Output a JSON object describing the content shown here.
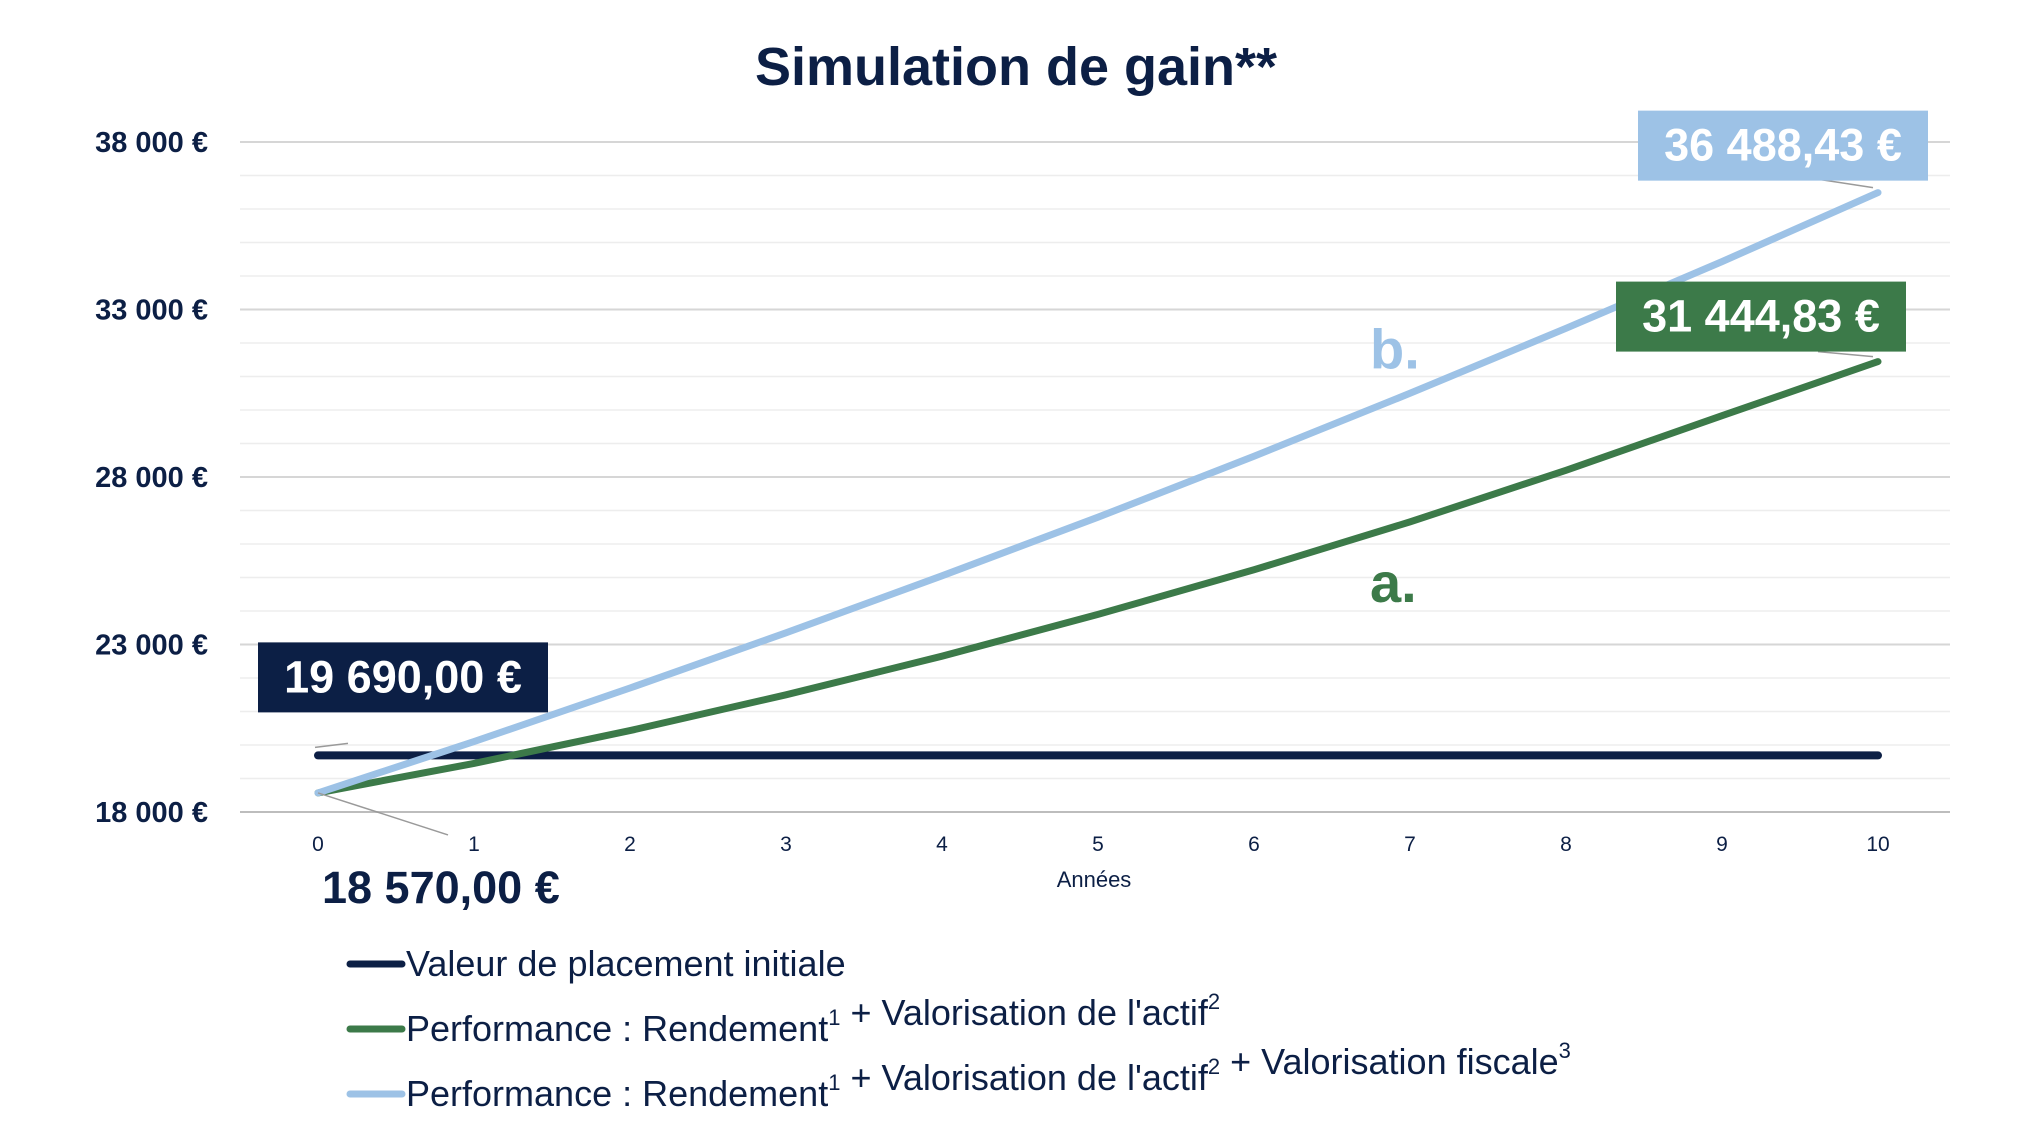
{
  "chart_data": {
    "type": "line",
    "title": "Simulation de gain**",
    "xlabel": "Années",
    "ylabel": "",
    "x": [
      0,
      1,
      2,
      3,
      4,
      5,
      6,
      7,
      8,
      9,
      10
    ],
    "ylim": [
      18000,
      38000
    ],
    "yticks": [
      18000,
      23000,
      28000,
      33000,
      38000
    ],
    "ytick_labels": [
      "18 000 €",
      "23 000 €",
      "28 000 €",
      "33 000 €",
      "38 000 €"
    ],
    "minor_grid_step": 1000,
    "grid": true,
    "legend_position": "bottom-left",
    "series": [
      {
        "name": "Valeur de placement initiale",
        "name_sup": [],
        "color": "#0c1f45",
        "values": [
          19690,
          19690,
          19690,
          19690,
          19690,
          19690,
          19690,
          19690,
          19690,
          19690,
          19690
        ]
      },
      {
        "name": "Performance : Rendement + Valorisation de l'actif",
        "name_sup": [
          "1",
          "2"
        ],
        "letter": "a.",
        "color": "#3c7a49",
        "values": [
          18570,
          19450,
          20430,
          21500,
          22650,
          23900,
          25230,
          26660,
          28200,
          29830,
          31444.83
        ]
      },
      {
        "name": "Performance : Rendement + Valorisation de l'actif + Valorisation fiscale",
        "name_sup": [
          "1",
          "2",
          "3"
        ],
        "letter": "b.",
        "color": "#9dc2e6",
        "values": [
          18570,
          20100,
          21700,
          23350,
          25050,
          26800,
          28620,
          30500,
          32440,
          34430,
          36488.43
        ]
      }
    ],
    "annotations": [
      {
        "text": "19 690,00 €",
        "series": 0,
        "x": 0,
        "style": "box",
        "bg": "#0c1f45"
      },
      {
        "text": "18 570,00 €",
        "series": 1,
        "x": 0,
        "style": "plain"
      },
      {
        "text": "31 444,83 €",
        "series": 1,
        "x": 10,
        "style": "box",
        "bg": "#3c7a49"
      },
      {
        "text": "36 488,43 €",
        "series": 2,
        "x": 10,
        "style": "box",
        "bg": "#9dc2e6"
      }
    ]
  }
}
